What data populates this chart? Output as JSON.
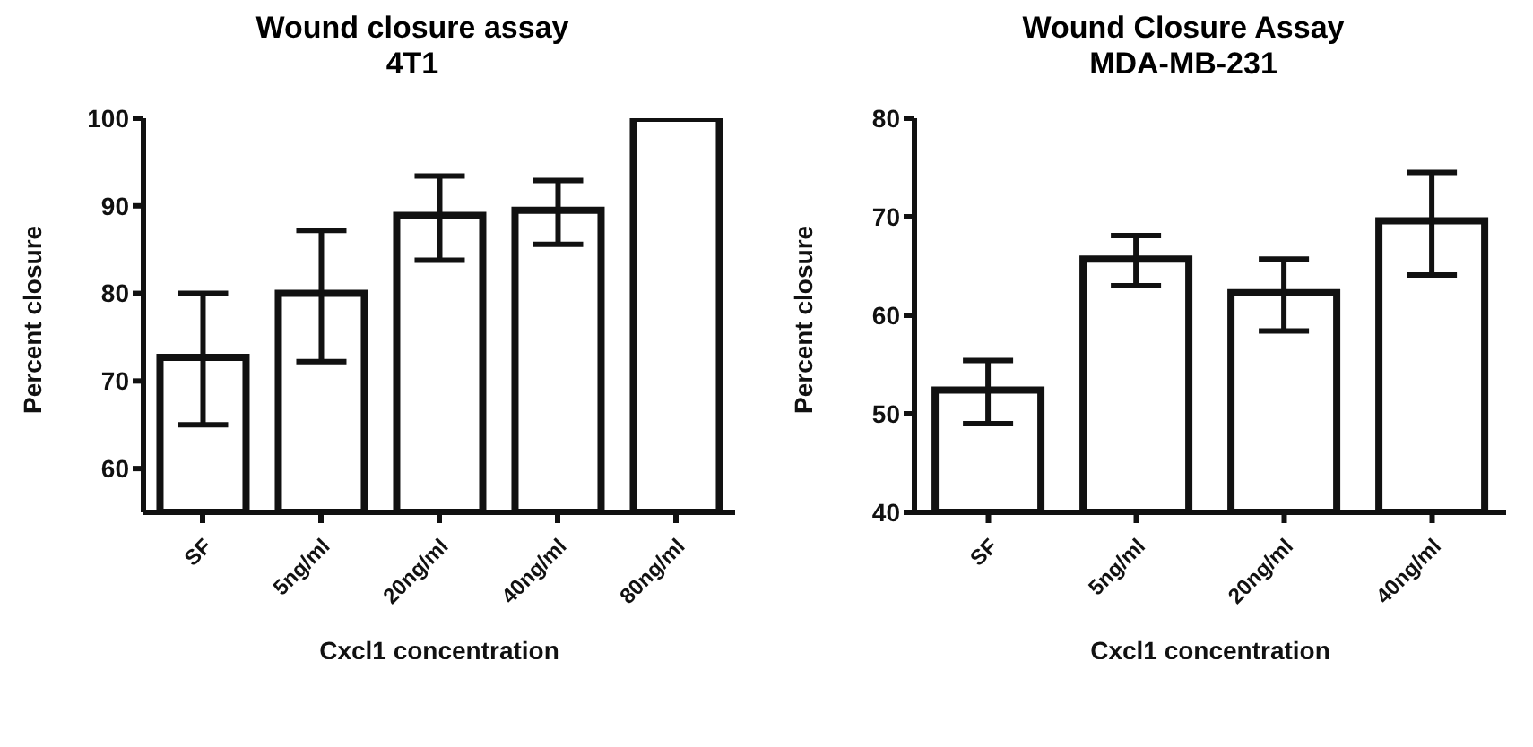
{
  "chart_data": [
    {
      "type": "bar",
      "title": "Wound closure assay\n4T1",
      "xlabel": "Cxcl1 concentration",
      "ylabel": "Percent closure",
      "categories": [
        "SF",
        "5ng/ml",
        "20ng/ml",
        "40ng/ml",
        "80ng/ml"
      ],
      "values": [
        72.7,
        80,
        88.9,
        89.5,
        100
      ],
      "errors": [
        [
          65,
          80
        ],
        [
          72.2,
          87.2
        ],
        [
          83.8,
          93.4
        ],
        [
          85.6,
          92.9
        ],
        null
      ],
      "color": "#ffffff",
      "ylim": [
        55,
        100
      ],
      "yticks": [
        60,
        70,
        80,
        90,
        100
      ],
      "grid": false,
      "legend": false
    },
    {
      "type": "bar",
      "title": "Wound Closure Assay\nMDA-MB-231",
      "xlabel": "Cxcl1 concentration",
      "ylabel": "Percent closure",
      "categories": [
        "SF",
        "5ng/ml",
        "20ng/ml",
        "40ng/ml"
      ],
      "values": [
        52.4,
        65.7,
        62.3,
        69.6
      ],
      "errors": [
        [
          49,
          55.4
        ],
        [
          63,
          68.1
        ],
        [
          58.4,
          65.7
        ],
        [
          64.1,
          74.5
        ]
      ],
      "color": "#ffffff",
      "ylim": [
        40,
        80
      ],
      "yticks": [
        40,
        50,
        60,
        70,
        80
      ],
      "grid": false,
      "legend": false
    }
  ]
}
